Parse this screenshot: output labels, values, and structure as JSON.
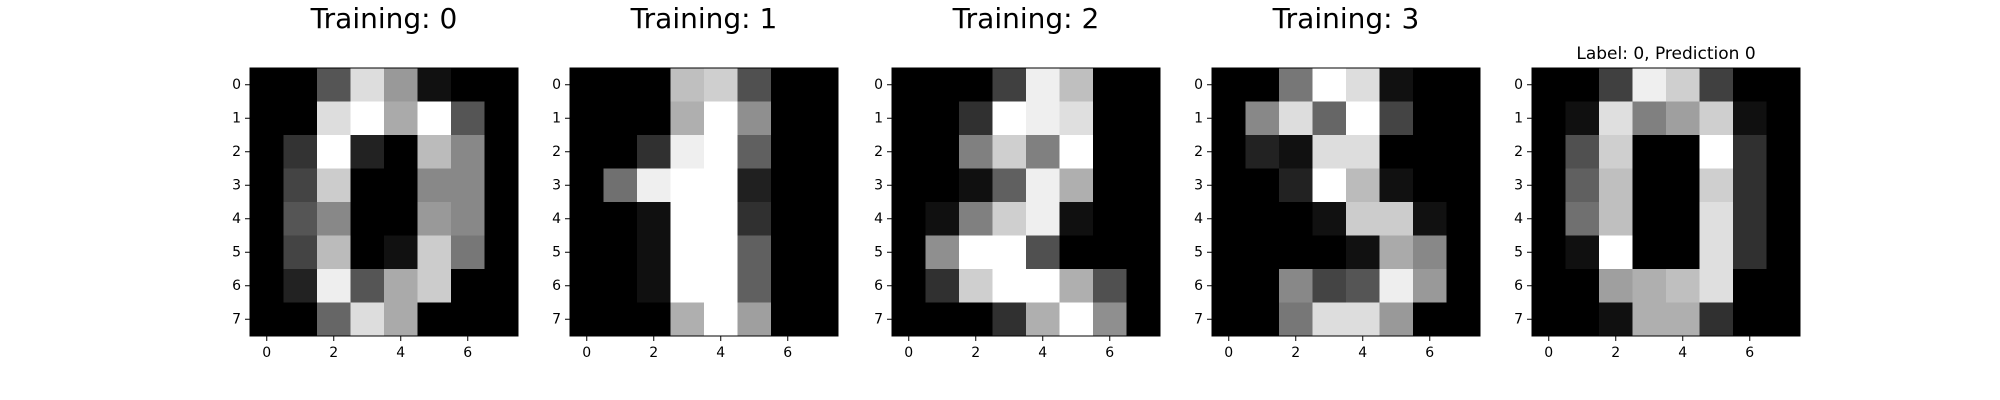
{
  "chart_data": [
    {
      "type": "image",
      "title": "Training: 0",
      "cmap": "gray",
      "values": [
        [
          0,
          0,
          5,
          13,
          9,
          1,
          0,
          0
        ],
        [
          0,
          0,
          13,
          15,
          10,
          15,
          5,
          0
        ],
        [
          0,
          3,
          15,
          2,
          0,
          11,
          8,
          0
        ],
        [
          0,
          4,
          12,
          0,
          0,
          8,
          8,
          0
        ],
        [
          0,
          5,
          8,
          0,
          0,
          9,
          8,
          0
        ],
        [
          0,
          4,
          11,
          0,
          1,
          12,
          7,
          0
        ],
        [
          0,
          2,
          14,
          5,
          10,
          12,
          0,
          0
        ],
        [
          0,
          0,
          6,
          13,
          10,
          0,
          0,
          0
        ]
      ],
      "xlim": [
        -0.5,
        7.5
      ],
      "ylim": [
        7.5,
        -0.5
      ],
      "xticks": [
        0,
        2,
        4,
        6
      ],
      "yticks": [
        0,
        1,
        2,
        3,
        4,
        5,
        6,
        7
      ]
    },
    {
      "type": "image",
      "title": "Training: 1",
      "cmap": "gray",
      "values": [
        [
          0,
          0,
          0,
          12,
          13,
          5,
          0,
          0
        ],
        [
          0,
          0,
          0,
          11,
          16,
          9,
          0,
          0
        ],
        [
          0,
          0,
          3,
          15,
          16,
          6,
          0,
          0
        ],
        [
          0,
          7,
          15,
          16,
          16,
          2,
          0,
          0
        ],
        [
          0,
          0,
          1,
          16,
          16,
          3,
          0,
          0
        ],
        [
          0,
          0,
          1,
          16,
          16,
          6,
          0,
          0
        ],
        [
          0,
          0,
          1,
          16,
          16,
          6,
          0,
          0
        ],
        [
          0,
          0,
          0,
          11,
          16,
          10,
          0,
          0
        ]
      ],
      "xlim": [
        -0.5,
        7.5
      ],
      "ylim": [
        7.5,
        -0.5
      ],
      "xticks": [
        0,
        2,
        4,
        6
      ],
      "yticks": [
        0,
        1,
        2,
        3,
        4,
        5,
        6,
        7
      ]
    },
    {
      "type": "image",
      "title": "Training: 2",
      "cmap": "gray",
      "values": [
        [
          0,
          0,
          0,
          4,
          15,
          12,
          0,
          0
        ],
        [
          0,
          0,
          3,
          16,
          15,
          14,
          0,
          0
        ],
        [
          0,
          0,
          8,
          13,
          8,
          16,
          0,
          0
        ],
        [
          0,
          0,
          1,
          6,
          15,
          11,
          0,
          0
        ],
        [
          0,
          1,
          8,
          13,
          15,
          1,
          0,
          0
        ],
        [
          0,
          9,
          16,
          16,
          5,
          0,
          0,
          0
        ],
        [
          0,
          3,
          13,
          16,
          16,
          11,
          5,
          0
        ],
        [
          0,
          0,
          0,
          3,
          11,
          16,
          9,
          0
        ]
      ],
      "xlim": [
        -0.5,
        7.5
      ],
      "ylim": [
        7.5,
        -0.5
      ],
      "xticks": [
        0,
        2,
        4,
        6
      ],
      "yticks": [
        0,
        1,
        2,
        3,
        4,
        5,
        6,
        7
      ]
    },
    {
      "type": "image",
      "title": "Training: 3",
      "cmap": "gray",
      "values": [
        [
          0,
          0,
          7,
          15,
          13,
          1,
          0,
          0
        ],
        [
          0,
          8,
          13,
          6,
          15,
          4,
          0,
          0
        ],
        [
          0,
          2,
          1,
          13,
          13,
          0,
          0,
          0
        ],
        [
          0,
          0,
          2,
          15,
          11,
          1,
          0,
          0
        ],
        [
          0,
          0,
          0,
          1,
          12,
          12,
          1,
          0
        ],
        [
          0,
          0,
          0,
          0,
          1,
          10,
          8,
          0
        ],
        [
          0,
          0,
          8,
          4,
          5,
          14,
          9,
          0
        ],
        [
          0,
          0,
          7,
          13,
          13,
          9,
          0,
          0
        ]
      ],
      "xlim": [
        -0.5,
        7.5
      ],
      "ylim": [
        7.5,
        -0.5
      ],
      "xticks": [
        0,
        2,
        4,
        6
      ],
      "yticks": [
        0,
        1,
        2,
        3,
        4,
        5,
        6,
        7
      ]
    },
    {
      "type": "image",
      "title": "Label: 0, Prediction 0",
      "cmap": "gray",
      "values": [
        [
          0,
          0,
          4,
          15,
          13,
          4,
          0,
          0
        ],
        [
          0,
          1,
          14,
          8,
          10,
          13,
          1,
          0
        ],
        [
          0,
          5,
          13,
          0,
          0,
          16,
          3,
          0
        ],
        [
          0,
          6,
          12,
          0,
          0,
          13,
          3,
          0
        ],
        [
          0,
          7,
          12,
          0,
          0,
          14,
          3,
          0
        ],
        [
          0,
          1,
          16,
          0,
          0,
          14,
          3,
          0
        ],
        [
          0,
          0,
          10,
          11,
          12,
          14,
          0,
          0
        ],
        [
          0,
          0,
          1,
          11,
          11,
          3,
          0,
          0
        ]
      ],
      "xlim": [
        -0.5,
        7.5
      ],
      "ylim": [
        7.5,
        -0.5
      ],
      "xticks": [
        0,
        2,
        4,
        6
      ],
      "yticks": [
        0,
        1,
        2,
        3,
        4,
        5,
        6,
        7
      ]
    }
  ]
}
